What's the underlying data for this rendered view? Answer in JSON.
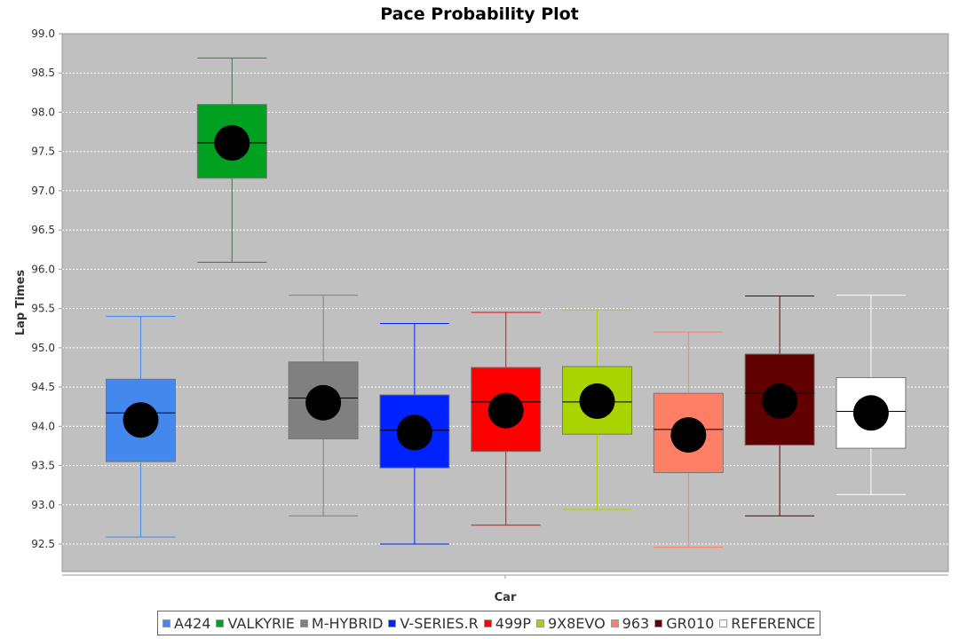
{
  "chart_data": {
    "type": "box",
    "title": "Pace Probability Plot",
    "xlabel": "Car",
    "ylabel": "Lap Times",
    "ylim": [
      92.15,
      99.0
    ],
    "yticks": [
      "92.5",
      "93.0",
      "93.5",
      "94.0",
      "94.5",
      "95.0",
      "95.5",
      "96.0",
      "96.5",
      "97.0",
      "97.5",
      "98.0",
      "98.5",
      "99.0"
    ],
    "grid": true,
    "legend_position": "bottom",
    "categories": [
      "A424",
      "VALKYRIE",
      "M-HYBRID",
      "V-SERIES.R",
      "499P",
      "9X8EVO",
      "963",
      "GR010",
      "REFERENCE"
    ],
    "series": [
      {
        "name": "A424",
        "color": "#4488ee",
        "whisker_low": 92.59,
        "q1": 93.55,
        "median": 94.17,
        "q3": 94.6,
        "whisker_high": 95.4,
        "mean": 94.08
      },
      {
        "name": "VALKYRIE",
        "color": "#00a020",
        "whisker_low": 96.09,
        "q1": 97.16,
        "median": 97.61,
        "q3": 98.1,
        "whisker_high": 98.69,
        "mean": 97.61
      },
      {
        "name": "M-HYBRID",
        "color": "#808080",
        "whisker_low": 92.86,
        "q1": 93.84,
        "median": 94.36,
        "q3": 94.82,
        "whisker_high": 95.67,
        "mean": 94.3
      },
      {
        "name": "V-SERIES.R",
        "color": "#0022ff",
        "whisker_low": 92.5,
        "q1": 93.47,
        "median": 93.95,
        "q3": 94.4,
        "whisker_high": 95.31,
        "mean": 93.92
      },
      {
        "name": "499P",
        "color": "#ff0000",
        "whisker_low": 92.74,
        "q1": 93.68,
        "median": 94.31,
        "q3": 94.75,
        "whisker_high": 95.45,
        "mean": 94.2
      },
      {
        "name": "9X8EVO",
        "color": "#aad400",
        "whisker_low": 92.94,
        "q1": 93.9,
        "median": 94.31,
        "q3": 94.76,
        "whisker_high": 95.48,
        "mean": 94.32
      },
      {
        "name": "963",
        "color": "#ff7f66",
        "whisker_low": 92.46,
        "q1": 93.41,
        "median": 93.96,
        "q3": 94.42,
        "whisker_high": 95.2,
        "mean": 93.89
      },
      {
        "name": "GR010",
        "color": "#600000",
        "whisker_low": 92.86,
        "q1": 93.76,
        "median": 94.42,
        "q3": 94.92,
        "whisker_high": 95.66,
        "mean": 94.32
      },
      {
        "name": "REFERENCE",
        "color": "#ffffff",
        "whisker_low": 93.13,
        "q1": 93.72,
        "median": 94.19,
        "q3": 94.62,
        "whisker_high": 95.67,
        "mean": 94.17
      }
    ]
  }
}
